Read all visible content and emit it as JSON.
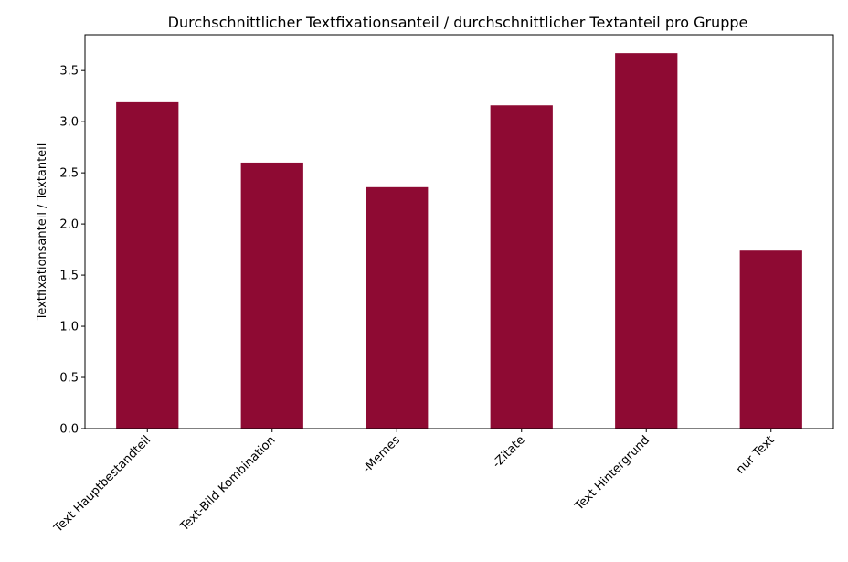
{
  "chart_data": {
    "type": "bar",
    "title": "Durchschnittlicher Textfixationsanteil / durchschnittlicher Textanteil pro Gruppe",
    "xlabel": "",
    "ylabel": "Textfixationsanteil / Textanteil",
    "categories": [
      "Text Hauptbestandteil",
      "Text-Bild Kombination",
      "-Memes",
      "-Zitate",
      "Text Hintergrund",
      "nur Text"
    ],
    "values": [
      3.19,
      2.6,
      2.36,
      3.16,
      3.67,
      1.74
    ],
    "ylim": [
      0,
      3.85
    ],
    "yticks": [
      0.0,
      0.5,
      1.0,
      1.5,
      2.0,
      2.5,
      3.0,
      3.5
    ],
    "ytick_labels": [
      "0.0",
      "0.5",
      "1.0",
      "1.5",
      "2.0",
      "2.5",
      "3.0",
      "3.5"
    ],
    "bar_color": "#8e0a33",
    "grid": false,
    "legend": "none"
  }
}
